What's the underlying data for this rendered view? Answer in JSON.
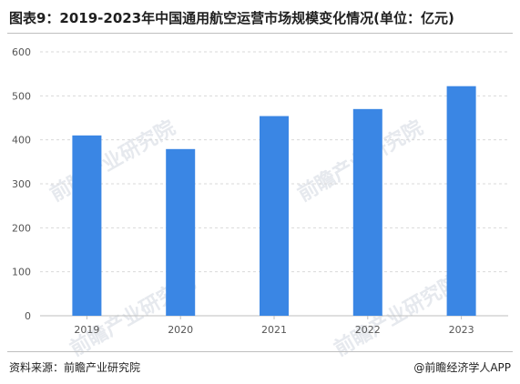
{
  "header": {
    "title": "图表9：2019-2023年中国通用航空运营市场规模变化情况(单位：亿元)"
  },
  "footer": {
    "source": "资料来源：前瞻产业研究院",
    "brand": "@前瞻经济学人APP"
  },
  "watermark": {
    "text": "前瞻产业研究院"
  },
  "colors": {
    "bar": "#3a86e4",
    "grid": "#d9d9d9",
    "axis": "#bfbfbf"
  },
  "chart_data": {
    "type": "bar",
    "categories": [
      "2019",
      "2020",
      "2021",
      "2022",
      "2023"
    ],
    "values": [
      410,
      379,
      454,
      470,
      522
    ],
    "yticks": [
      "0",
      "100",
      "200",
      "300",
      "400",
      "500",
      "600"
    ],
    "ylim": [
      0,
      600
    ],
    "grid": true,
    "legend": false,
    "title": "",
    "xlabel": "",
    "ylabel": ""
  }
}
